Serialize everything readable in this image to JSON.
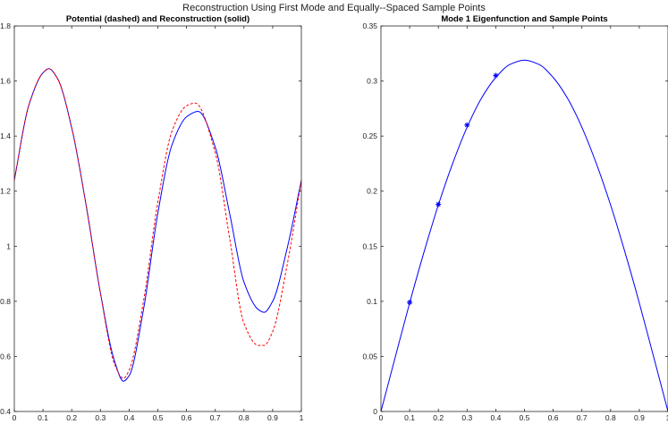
{
  "figure_title": "Reconstruction Using First Mode and Equally--Spaced Sample Points",
  "chart_data": [
    {
      "type": "line",
      "title": "Potential (dashed) and Reconstruction (solid)",
      "xlabel": "",
      "ylabel": "",
      "xlim": [
        0,
        1
      ],
      "ylim": [
        0.4,
        1.8
      ],
      "xticks": [
        "0",
        "0.1",
        "0.2",
        "0.3",
        "0.4",
        "0.5",
        "0.6",
        "0.7",
        "0.8",
        "0.9",
        "1"
      ],
      "yticks": [
        "0.4",
        "0.6",
        "0.8",
        "1",
        "1.2",
        "1.4",
        "1.6",
        "1.8"
      ],
      "grid": false,
      "series": [
        {
          "style": "solid",
          "color": "#0000ff",
          "x": [
            0,
            0.05,
            0.1,
            0.12,
            0.15,
            0.2,
            0.25,
            0.3,
            0.35,
            0.38,
            0.4,
            0.45,
            0.5,
            0.55,
            0.6,
            0.64,
            0.7,
            0.75,
            0.8,
            0.85,
            0.87,
            0.9,
            0.95,
            1
          ],
          "y": [
            1.24,
            1.51,
            1.63,
            1.645,
            1.61,
            1.43,
            1.15,
            0.83,
            0.58,
            0.51,
            0.53,
            0.77,
            1.12,
            1.37,
            1.47,
            1.49,
            1.36,
            1.12,
            0.87,
            0.77,
            0.76,
            0.8,
            0.99,
            1.24
          ]
        },
        {
          "style": "dashed",
          "color": "#ff0000",
          "x": [
            0,
            0.05,
            0.1,
            0.12,
            0.15,
            0.2,
            0.25,
            0.3,
            0.35,
            0.38,
            0.4,
            0.45,
            0.5,
            0.55,
            0.6,
            0.63,
            0.7,
            0.75,
            0.8,
            0.85,
            0.87,
            0.9,
            0.95,
            1
          ],
          "y": [
            1.24,
            1.51,
            1.63,
            1.645,
            1.61,
            1.43,
            1.15,
            0.83,
            0.57,
            0.52,
            0.55,
            0.8,
            1.16,
            1.42,
            1.51,
            1.52,
            1.34,
            1.03,
            0.72,
            0.64,
            0.64,
            0.69,
            0.93,
            1.24
          ]
        }
      ]
    },
    {
      "type": "line",
      "title": "Mode 1 Eigenfunction and Sample Points",
      "xlabel": "",
      "ylabel": "",
      "xlim": [
        0,
        1
      ],
      "ylim": [
        0,
        0.35
      ],
      "xticks": [
        "0",
        "0.1",
        "0.2",
        "0.3",
        "0.4",
        "0.5",
        "0.6",
        "0.7",
        "0.8",
        "0.9",
        "1"
      ],
      "yticks": [
        "0",
        "0.05",
        "0.1",
        "0.15",
        "0.2",
        "0.25",
        "0.3",
        "0.35"
      ],
      "grid": false,
      "series": [
        {
          "style": "solid",
          "color": "#0000ff",
          "x": [
            0,
            0.05,
            0.1,
            0.15,
            0.2,
            0.25,
            0.3,
            0.35,
            0.4,
            0.45,
            0.5,
            0.55,
            0.6,
            0.65,
            0.7,
            0.75,
            0.8,
            0.85,
            0.9,
            0.95,
            1
          ],
          "y": [
            0,
            0.0495,
            0.0986,
            0.1447,
            0.1875,
            0.2253,
            0.258,
            0.2843,
            0.3032,
            0.3151,
            0.3189,
            0.3151,
            0.3032,
            0.2843,
            0.258,
            0.2253,
            0.1875,
            0.1447,
            0.0986,
            0.0495,
            0
          ]
        },
        {
          "style": "markers",
          "marker": "asterisk",
          "color": "#0000ff",
          "x": [
            0.1,
            0.2,
            0.3,
            0.4
          ],
          "y": [
            0.099,
            0.188,
            0.26,
            0.305
          ]
        }
      ]
    }
  ]
}
